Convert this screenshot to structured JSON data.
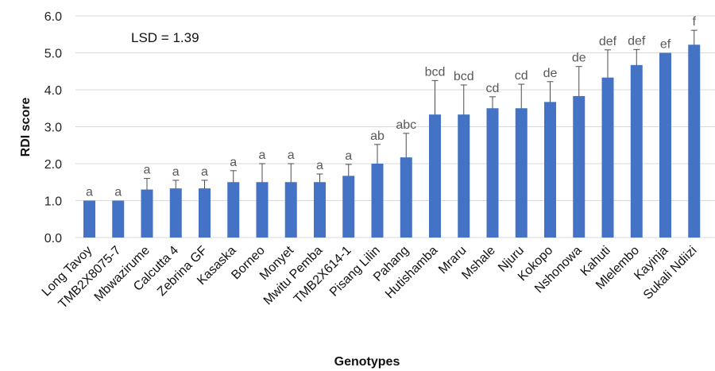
{
  "chart_data": {
    "type": "bar",
    "title": "",
    "xlabel": "Genotypes",
    "ylabel": "RDI score",
    "ylim": [
      0,
      6
    ],
    "yticks": [
      "0.0",
      "1.0",
      "2.0",
      "3.0",
      "4.0",
      "5.0",
      "6.0"
    ],
    "grid": true,
    "annotation": "LSD = 1.39",
    "bar_color": "#4472C4",
    "categories": [
      "Long Tavoy",
      "TMB2X8075-7",
      "Mbwazirume",
      "Calcutta 4",
      "Zebrina GF",
      "Kasaska",
      "Borneo",
      "Monyet",
      "Mwitu Pemba",
      "TMB2X614-1",
      "Pisang Lilin",
      "Pahang",
      "Hutishamba",
      "Mraru",
      "Mshale",
      "Njuru",
      "Kokopo",
      "Nshonowa",
      "Kahuti",
      "Mlelembo",
      "Kayinja",
      "Sukali Ndiizi"
    ],
    "values": [
      1.0,
      1.0,
      1.3,
      1.33,
      1.33,
      1.5,
      1.5,
      1.5,
      1.5,
      1.67,
      2.0,
      2.17,
      3.33,
      3.33,
      3.5,
      3.5,
      3.67,
      3.83,
      4.33,
      4.67,
      5.0,
      5.22
    ],
    "error": [
      0,
      0,
      0.3,
      0.22,
      0.22,
      0.31,
      0.5,
      0.5,
      0.22,
      0.31,
      0.52,
      0.65,
      0.92,
      0.8,
      0.31,
      0.65,
      0.55,
      0.8,
      0.75,
      0.42,
      0,
      0.39
    ],
    "letters": [
      "a",
      "a",
      "a",
      "a",
      "a",
      "a",
      "a",
      "a",
      "a",
      "a",
      "ab",
      "abc",
      "bcd",
      "bcd",
      "cd",
      "cd",
      "de",
      "de",
      "def",
      "def",
      "ef",
      "f"
    ]
  }
}
